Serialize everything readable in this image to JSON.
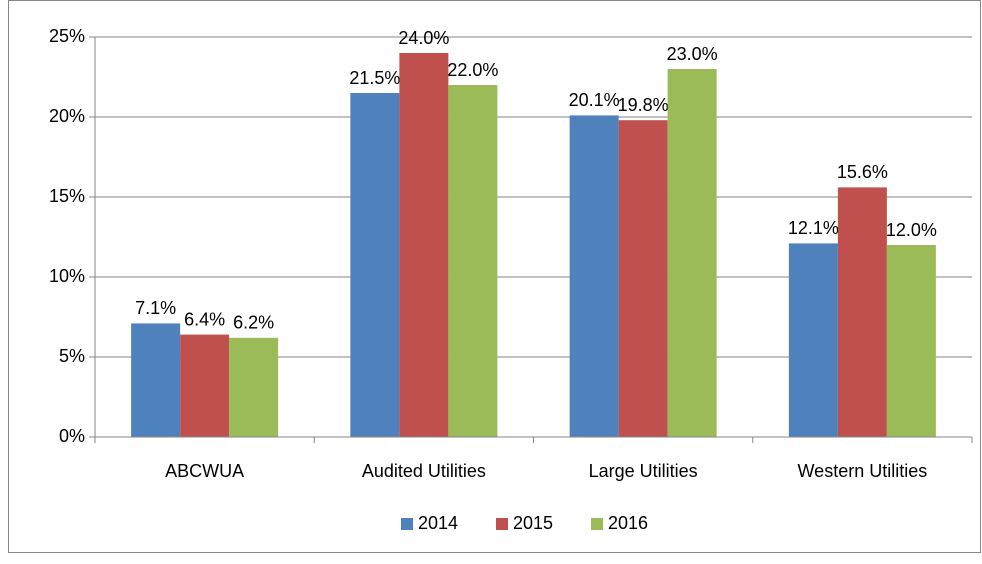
{
  "chart_data": {
    "type": "bar",
    "categories": [
      "ABCWUA",
      "Audited Utilities",
      "Large Utilities",
      "Western Utilities"
    ],
    "series": [
      {
        "name": "2014",
        "color": "#4f81bd",
        "values": [
          7.1,
          21.5,
          20.1,
          12.1
        ],
        "value_labels": [
          "7.1%",
          "21.5%",
          "20.1%",
          "12.1%"
        ]
      },
      {
        "name": "2015",
        "color": "#c0504d",
        "values": [
          6.4,
          24.0,
          19.8,
          15.6
        ],
        "value_labels": [
          "6.4%",
          "24.0%",
          "19.8%",
          "15.6%"
        ]
      },
      {
        "name": "2016",
        "color": "#9bbb59",
        "values": [
          6.2,
          22.0,
          23.0,
          12.0
        ],
        "value_labels": [
          "6.2%",
          "22.0%",
          "23.0%",
          "12.0%"
        ]
      }
    ],
    "ylim": [
      0,
      25
    ],
    "yticks": [
      {
        "value": 0,
        "label": "0%"
      },
      {
        "value": 5,
        "label": "5%"
      },
      {
        "value": 10,
        "label": "10%"
      },
      {
        "value": 15,
        "label": "15%"
      },
      {
        "value": 20,
        "label": "20%"
      },
      {
        "value": 25,
        "label": "25%"
      }
    ],
    "grid": true,
    "legend": "bottom"
  }
}
